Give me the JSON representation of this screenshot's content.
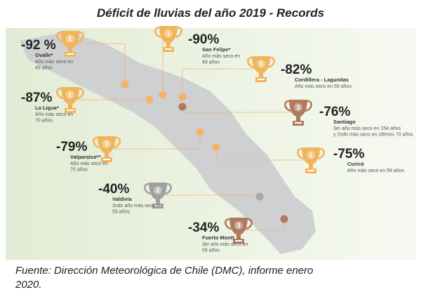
{
  "title": "Déficit de lluvias del año 2019 - Records",
  "records": [
    {
      "percent": "-92 %",
      "place": "Ovalle*",
      "note": [
        "Año más seco en",
        "49 años"
      ],
      "rank": "1"
    },
    {
      "percent": "-90%",
      "place": "San Felipe*",
      "note": [
        "Año más seco en",
        "49 años"
      ],
      "rank": "1"
    },
    {
      "percent": "-82%",
      "place": "Cordillera - Lagunitas",
      "note": [
        "Año más seco en 59 años"
      ],
      "rank": "1"
    },
    {
      "percent": "-87%",
      "place": "La Ligua*",
      "note": [
        "Año más seco en",
        "70 años"
      ],
      "rank": "1"
    },
    {
      "percent": "-76%",
      "place": "Santiago",
      "note": [
        "3er año más seco en 154 años",
        "y 2ndo más seco en últimos 70 años"
      ],
      "rank": "3"
    },
    {
      "percent": "-79%",
      "place": "Valparaíso**",
      "note": [
        "Año más seco en",
        "70 años"
      ],
      "rank": "1"
    },
    {
      "percent": "-75%",
      "place": "Curicó",
      "note": [
        "Año más seco en 59 años"
      ],
      "rank": "1"
    },
    {
      "percent": "-40%",
      "place": "Valdivia",
      "note": [
        "2ndo año más seco en",
        "59 años"
      ],
      "rank": "2"
    },
    {
      "percent": "-34%",
      "place": "Fuerto Montt",
      "note": [
        "3er año más seco en",
        "59 años"
      ],
      "rank": "3"
    }
  ],
  "source": [
    "Fuente: Dirección Meteorológica de Chile (DMC), informe enero",
    "2020."
  ]
}
